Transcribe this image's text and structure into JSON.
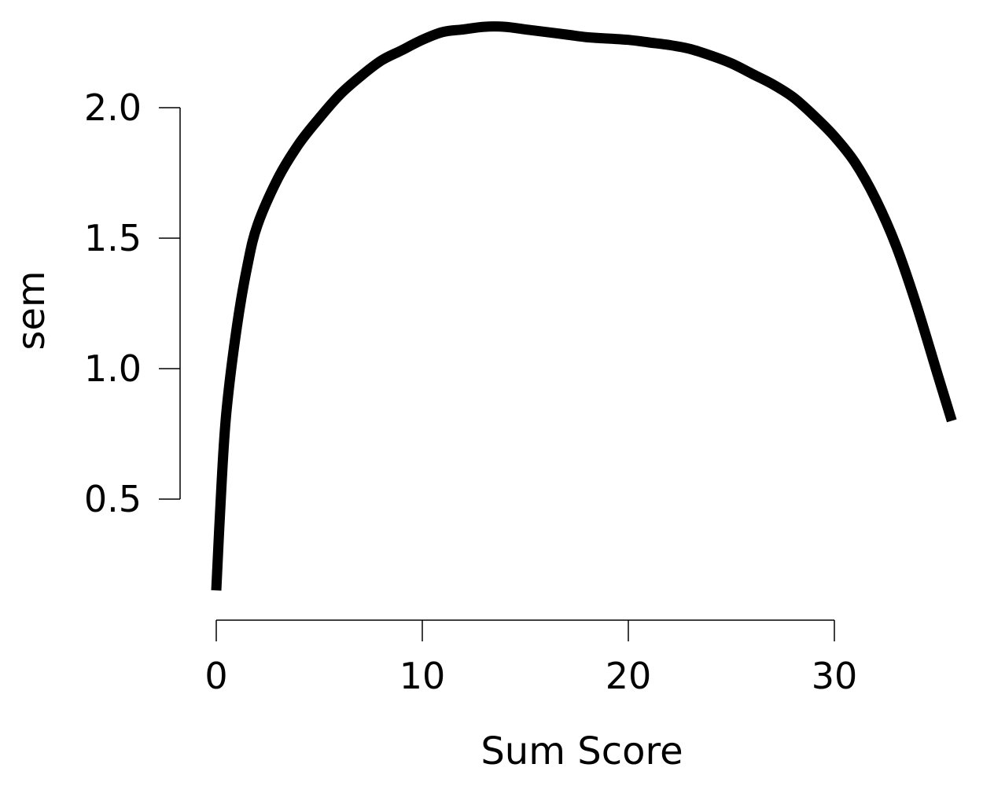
{
  "chart_data": {
    "type": "line",
    "title": "",
    "xlabel": "Sum Score",
    "ylabel": "sem",
    "xlim": [
      0,
      35.7
    ],
    "ylim": [
      0.15,
      2.3
    ],
    "x_ticks": [
      0,
      10,
      20,
      30
    ],
    "x_tick_labels": [
      "0",
      "10",
      "20",
      "30"
    ],
    "y_ticks": [
      0.5,
      1.0,
      1.5,
      2.0
    ],
    "y_tick_labels": [
      "0.5",
      "1.0",
      "1.5",
      "2.0"
    ],
    "grid": false,
    "legend": "none",
    "line_color": "#000000",
    "series": [
      {
        "x": [
          0,
          0.25,
          0.5,
          1,
          1.5,
          2,
          3,
          4,
          5,
          6,
          7,
          8,
          9,
          10,
          11,
          12,
          13,
          14,
          15,
          16,
          17,
          18,
          19,
          20,
          21,
          22,
          23,
          24,
          25,
          26,
          27,
          28,
          29,
          30,
          31,
          32,
          33,
          34,
          35,
          35.7
        ],
        "values": [
          0.15,
          0.55,
          0.84,
          1.16,
          1.39,
          1.55,
          1.73,
          1.86,
          1.96,
          2.05,
          2.12,
          2.18,
          2.22,
          2.26,
          2.29,
          2.3,
          2.31,
          2.31,
          2.3,
          2.29,
          2.28,
          2.27,
          2.265,
          2.26,
          2.25,
          2.24,
          2.225,
          2.2,
          2.17,
          2.13,
          2.09,
          2.04,
          1.97,
          1.89,
          1.79,
          1.65,
          1.47,
          1.24,
          0.98,
          0.8
        ]
      }
    ]
  }
}
